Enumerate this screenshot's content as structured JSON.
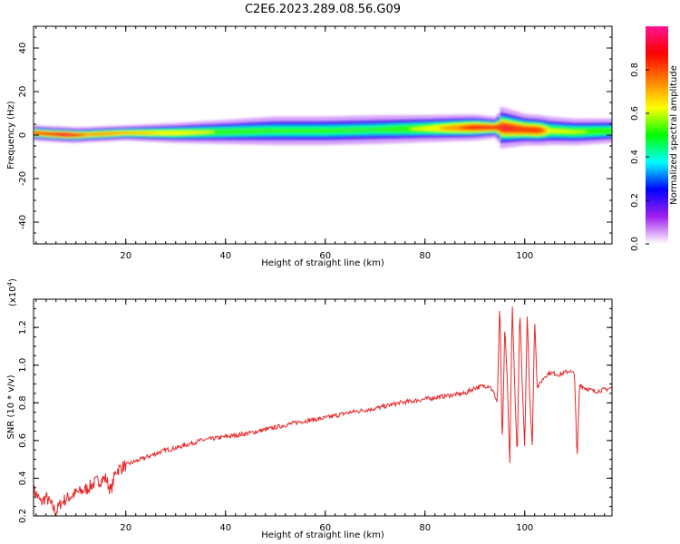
{
  "figure": {
    "title": "C2E6.2023.289.08.56.G09"
  },
  "chart_data": [
    {
      "type": "heatmap",
      "xlabel": "Height of straight line (km)",
      "ylabel": "Frequency (Hz)",
      "xlim": [
        1.5,
        117.5
      ],
      "ylim": [
        -50,
        50
      ],
      "xticks": [
        20,
        40,
        60,
        80,
        100
      ],
      "yticks": [
        -40,
        -20,
        0,
        20,
        40
      ],
      "colorbar": {
        "label": "Normalized spectral amplitude",
        "range": [
          0,
          1
        ],
        "ticks": [
          "0.0",
          "0.2",
          "0.4",
          "0.6",
          "0.8"
        ],
        "colors": [
          "#ffffff",
          "#a020f0",
          "#0000ff",
          "#00ffff",
          "#00ff00",
          "#ffff00",
          "#ff8000",
          "#ff0000",
          "#ff1493"
        ]
      },
      "band_center_hz": [
        [
          1.5,
          1.0
        ],
        [
          5,
          0.5
        ],
        [
          10,
          0.0
        ],
        [
          15,
          0.5
        ],
        [
          20,
          1.0
        ],
        [
          30,
          1.0
        ],
        [
          40,
          1.5
        ],
        [
          50,
          2.0
        ],
        [
          60,
          2.0
        ],
        [
          70,
          2.5
        ],
        [
          80,
          3.0
        ],
        [
          90,
          3.5
        ],
        [
          94.5,
          3.5
        ],
        [
          95,
          3.5
        ],
        [
          100,
          2.5
        ],
        [
          105,
          2.0
        ],
        [
          110,
          1.5
        ],
        [
          117.5,
          2.0
        ]
      ],
      "band_halfwidth_hz": [
        [
          1.5,
          1.5
        ],
        [
          10,
          1.5
        ],
        [
          20,
          1.5
        ],
        [
          30,
          2.0
        ],
        [
          50,
          3.0
        ],
        [
          70,
          3.0
        ],
        [
          90,
          2.5
        ],
        [
          94.5,
          2.0
        ],
        [
          95,
          4.0
        ],
        [
          100,
          3.0
        ],
        [
          117.5,
          2.5
        ]
      ],
      "band_peak_amplitude": [
        [
          1.5,
          0.85
        ],
        [
          5,
          0.9
        ],
        [
          8,
          1.0
        ],
        [
          12,
          0.8
        ],
        [
          16,
          0.8
        ],
        [
          20,
          0.75
        ],
        [
          30,
          0.7
        ],
        [
          40,
          0.6
        ],
        [
          50,
          0.55
        ],
        [
          60,
          0.55
        ],
        [
          70,
          0.55
        ],
        [
          80,
          0.65
        ],
        [
          90,
          0.9
        ],
        [
          94.5,
          0.9
        ],
        [
          96,
          0.95
        ],
        [
          100,
          0.9
        ],
        [
          103,
          0.9
        ],
        [
          105,
          0.65
        ],
        [
          117.5,
          0.6
        ]
      ]
    },
    {
      "type": "line",
      "xlabel": "Height of straight line (km)",
      "ylabel": "SNR (10 * v/v)",
      "y_multiplier": "(x10",
      "y_multiplier_exp": "4",
      "y_multiplier_close": ")",
      "xlim": [
        1.5,
        117.5
      ],
      "ylim": [
        0.2,
        1.35
      ],
      "xticks": [
        20,
        40,
        60,
        80,
        100
      ],
      "yticks": [
        "0.2",
        "0.4",
        "0.6",
        "0.8",
        "1.0",
        "1.2"
      ],
      "line_color": "#e8292a",
      "series": [
        {
          "x": [
            1.5,
            3,
            4,
            5,
            6,
            7,
            8,
            10,
            12,
            14,
            16,
            17,
            18,
            20,
            23,
            25,
            28,
            30,
            35,
            40,
            45,
            50,
            55,
            60,
            65,
            70,
            75,
            80,
            85,
            88,
            90,
            92,
            93,
            94,
            94.5,
            95,
            95.5,
            96,
            96.5,
            97,
            97.5,
            98,
            98.5,
            99,
            99.5,
            100,
            100.5,
            101,
            101.5,
            102,
            102.5,
            103,
            104,
            105,
            107,
            108,
            109,
            110,
            110.5,
            111,
            112,
            114,
            116,
            117.5
          ],
          "y": [
            0.34,
            0.27,
            0.3,
            0.26,
            0.22,
            0.27,
            0.29,
            0.32,
            0.34,
            0.38,
            0.4,
            0.33,
            0.44,
            0.47,
            0.5,
            0.52,
            0.55,
            0.56,
            0.6,
            0.62,
            0.64,
            0.67,
            0.7,
            0.72,
            0.75,
            0.77,
            0.8,
            0.82,
            0.84,
            0.85,
            0.88,
            0.89,
            0.89,
            0.84,
            0.8,
            1.34,
            0.56,
            1.2,
            0.92,
            0.47,
            1.33,
            0.88,
            0.5,
            1.3,
            0.9,
            0.56,
            1.28,
            0.84,
            0.56,
            1.25,
            0.88,
            0.9,
            0.94,
            0.96,
            0.95,
            0.96,
            0.97,
            0.95,
            0.49,
            0.9,
            0.88,
            0.86,
            0.87,
            0.88
          ]
        }
      ]
    }
  ]
}
